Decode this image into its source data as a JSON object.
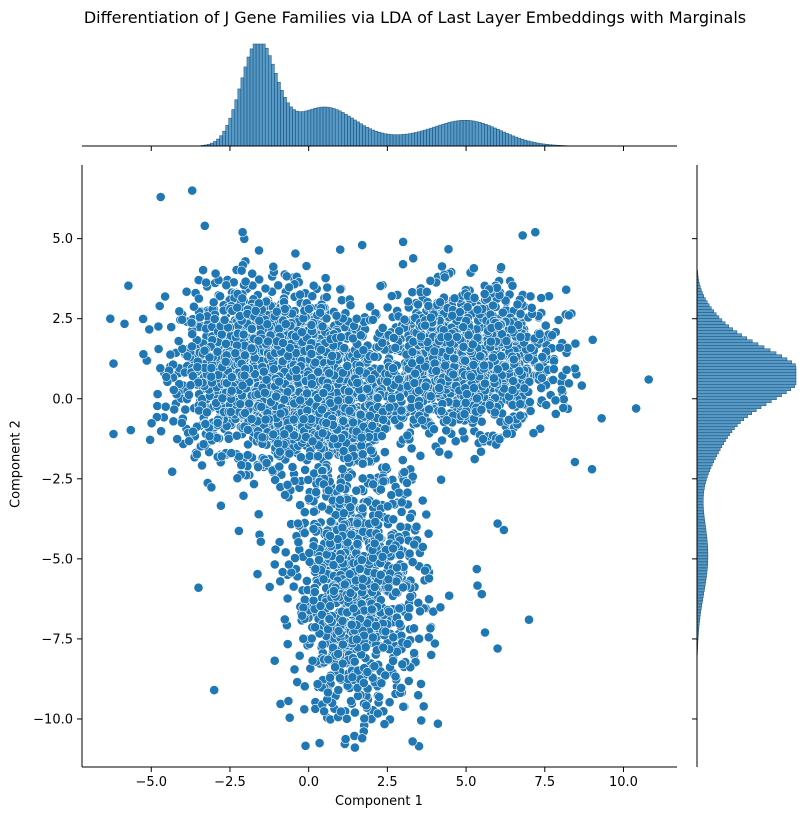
{
  "chart_data": {
    "type": "scatter",
    "title": "Differentiation of J Gene Families via LDA of Last Layer Embeddings with Marginals",
    "xlabel": "Component 1",
    "ylabel": "Component 2",
    "xlim": [
      -7.2,
      11.7
    ],
    "ylim": [
      -11.5,
      7.3
    ],
    "x_ticks": [
      -5.0,
      -2.5,
      0.0,
      2.5,
      5.0,
      7.5,
      10.0
    ],
    "y_ticks": [
      -10.0,
      -7.5,
      -5.0,
      -2.5,
      0.0,
      2.5,
      5.0
    ],
    "x_tick_labels": [
      "−5.0",
      "−2.5",
      "0.0",
      "2.5",
      "5.0",
      "7.5",
      "10.0"
    ],
    "y_tick_labels": [
      "−10.0",
      "−7.5",
      "−5.0",
      "−2.5",
      "0.0",
      "2.5",
      "5.0"
    ],
    "marker_color": "#1f77b4",
    "marker_edge": "#ffffff",
    "grid": false,
    "clusters": [
      {
        "name": "left",
        "center": [
          -1.5,
          0.9
        ],
        "spread": [
          1.25,
          1.25
        ],
        "weight": 0.38
      },
      {
        "name": "middle",
        "center": [
          0.6,
          0.0
        ],
        "spread": [
          1.1,
          1.3
        ],
        "weight": 0.14
      },
      {
        "name": "right",
        "center": [
          5.0,
          1.2
        ],
        "spread": [
          1.35,
          1.05
        ],
        "weight": 0.28
      },
      {
        "name": "bottom",
        "center": [
          1.6,
          -6.0
        ],
        "spread": [
          1.05,
          2.0
        ],
        "weight": 0.2
      }
    ],
    "outliers": [
      [
        -4.7,
        6.3
      ],
      [
        -3.7,
        6.5
      ],
      [
        -3.3,
        5.4
      ],
      [
        -2.1,
        5.2
      ],
      [
        1.7,
        4.8
      ],
      [
        3.0,
        4.9
      ],
      [
        6.8,
        5.1
      ],
      [
        7.2,
        5.2
      ],
      [
        -6.3,
        2.5
      ],
      [
        -6.2,
        -1.1
      ],
      [
        10.8,
        0.6
      ],
      [
        10.4,
        -0.3
      ],
      [
        9.0,
        -2.2
      ],
      [
        -3.5,
        -5.9
      ],
      [
        -3.0,
        -9.1
      ],
      [
        3.3,
        -10.7
      ],
      [
        1.7,
        -10.6
      ],
      [
        7.0,
        -6.9
      ],
      [
        5.6,
        -7.3
      ],
      [
        6.0,
        -7.8
      ],
      [
        5.5,
        -6.1
      ],
      [
        6.0,
        -3.9
      ],
      [
        6.2,
        -4.1
      ]
    ],
    "x_marginal": {
      "type": "histogram",
      "peaks": [
        {
          "x": -1.6,
          "height": 1.0,
          "width": 0.55
        },
        {
          "x": 0.5,
          "height": 0.38,
          "width": 1.0
        },
        {
          "x": 5.0,
          "height": 0.25,
          "width": 1.1
        },
        {
          "x": 2.8,
          "height": 0.05,
          "width": 0.9
        }
      ]
    },
    "y_marginal": {
      "type": "histogram",
      "peaks": [
        {
          "y": 0.8,
          "height": 1.0,
          "width": 0.85
        },
        {
          "y": -1.0,
          "height": 0.25,
          "width": 1.0
        },
        {
          "y": -4.9,
          "height": 0.11,
          "width": 1.2
        },
        {
          "y": 2.5,
          "height": 0.1,
          "width": 0.6
        }
      ]
    }
  }
}
